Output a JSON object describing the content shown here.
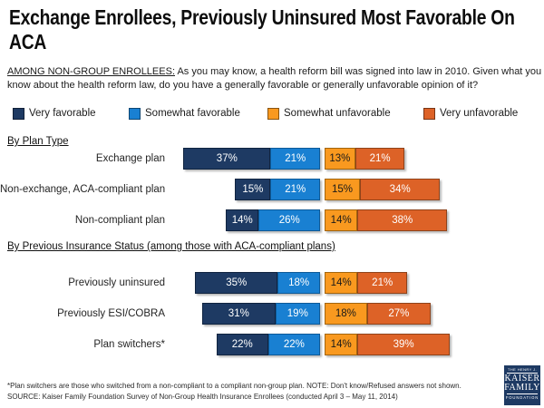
{
  "title": {
    "line1": "Exchange Enrollees, Previously Uninsured Most Favorable On",
    "line2": "ACA"
  },
  "subtitle": {
    "lead": "AMONG NON-GROUP ENROLLEES:",
    "text": " As you may know, a health reform bill was signed into law in 2010. Given what you know about the health reform law, do you have a generally favorable or generally unfavorable opinion of it?"
  },
  "legend": [
    {
      "label": "Very favorable",
      "color": "#1e3a63",
      "text_color": "#ffffff"
    },
    {
      "label": "Somewhat favorable",
      "color": "#1980d2",
      "text_color": "#ffffff"
    },
    {
      "label": "Somewhat unfavorable",
      "color": "#f9991f",
      "text_color": "#1a1a1a"
    },
    {
      "label": "Very unfavorable",
      "color": "#dd6227",
      "text_color": "#ffffff"
    }
  ],
  "chart_data": {
    "type": "bar",
    "variant": "diverging-stacked-horizontal",
    "unit": "%",
    "series": [
      "Very favorable",
      "Somewhat favorable",
      "Somewhat unfavorable",
      "Very unfavorable"
    ],
    "legend_position": "top",
    "sections": [
      {
        "header": "By Plan Type",
        "rows": [
          {
            "label": "Exchange plan",
            "values": [
              37,
              21,
              13,
              21
            ]
          },
          {
            "label": "Non-exchange, ACA-compliant plan",
            "values": [
              15,
              21,
              15,
              34
            ]
          },
          {
            "label": "Non-compliant plan",
            "values": [
              14,
              26,
              14,
              38
            ]
          }
        ]
      },
      {
        "header": "By Previous Insurance Status (among those with ACA-compliant plans)",
        "rows": [
          {
            "label": "Previously uninsured",
            "values": [
              35,
              18,
              14,
              21
            ]
          },
          {
            "label": "Previously ESI/COBRA",
            "values": [
              31,
              19,
              18,
              27
            ]
          },
          {
            "label": "Plan switchers*",
            "values": [
              22,
              22,
              14,
              39
            ]
          }
        ]
      }
    ]
  },
  "footnotes": [
    "*Plan switchers are those who switched from a non-compliant to a compliant non-group plan.  NOTE: Don't know/Refused answers not shown.",
    "SOURCE: Kaiser Family Foundation Survey of Non-Group Health Insurance Enrollees (conducted April 3 – May 11, 2014)"
  ],
  "logo": {
    "line1": "THE HENRY J.",
    "line2": "KAISER",
    "line3": "FAMILY",
    "line4": "FOUNDATION"
  }
}
